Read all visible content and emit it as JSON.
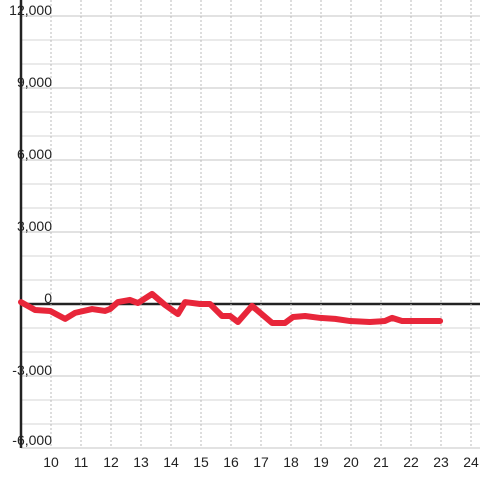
{
  "chart_data": {
    "type": "line",
    "x": [
      9.0,
      9.47,
      9.97,
      10.47,
      10.8,
      11.37,
      11.8,
      11.97,
      12.23,
      12.63,
      12.9,
      13.37,
      13.8,
      14.23,
      14.47,
      14.97,
      15.3,
      15.7,
      15.97,
      16.23,
      16.7,
      17.37,
      17.8,
      18.07,
      18.47,
      18.97,
      19.47,
      19.97,
      20.63,
      21.13,
      21.37,
      21.7,
      22.97
    ],
    "series": [
      {
        "color": "#e8263a",
        "values": [
          80,
          -250,
          -290,
          -620,
          -370,
          -210,
          -290,
          -210,
          80,
          170,
          40,
          420,
          -40,
          -420,
          80,
          0,
          0,
          -500,
          -500,
          -750,
          -80,
          -790,
          -790,
          -540,
          -500,
          -580,
          -620,
          -710,
          -750,
          -710,
          -580,
          -710,
          -710
        ]
      }
    ],
    "xlim": [
      9,
      24.3
    ],
    "xticks": [
      10,
      11,
      12,
      13,
      14,
      15,
      16,
      17,
      18,
      19,
      20,
      21,
      22,
      23,
      24
    ],
    "ylim": [
      -6000,
      12000
    ],
    "yticks": [
      {
        "value": 12000,
        "label": "12,000"
      },
      {
        "value": 9000,
        "label": "9,000"
      },
      {
        "value": 6000,
        "label": "6,000"
      },
      {
        "value": 3000,
        "label": "3,000"
      },
      0,
      {
        "value": -3000,
        "label": "-3,000"
      },
      {
        "value": -6000,
        "label": "-6,000"
      }
    ],
    "y_minor_ticks": [
      -5000,
      -4000,
      -2000,
      -1000,
      1000,
      2000,
      4000,
      5000,
      7000,
      8000,
      10000,
      11000
    ],
    "grid": true
  }
}
